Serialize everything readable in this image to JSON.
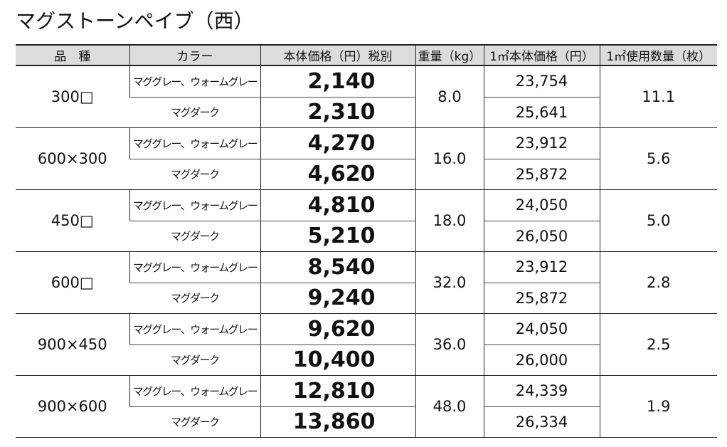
{
  "title": "マグストーンペイブ（西）",
  "table": {
    "headers": [
      "品　種",
      "カラー",
      "本体価格（円）税別",
      "重量（kg）",
      "1㎡本体価格（円）",
      "1㎡使用数量（枚）"
    ],
    "groups": [
      {
        "size": "300□",
        "weight": "8.0",
        "quantity": "11.1",
        "rows": [
          {
            "color": "マググレー、ウォームグレー",
            "price": "2,140",
            "unit_price": "23,754"
          },
          {
            "color": "マグダーク",
            "price": "2,310",
            "unit_price": "25,641"
          }
        ]
      },
      {
        "size": "600×300",
        "weight": "16.0",
        "quantity": "5.6",
        "rows": [
          {
            "color": "マググレー、ウォームグレー",
            "price": "4,270",
            "unit_price": "23,912"
          },
          {
            "color": "マグダーク",
            "price": "4,620",
            "unit_price": "25,872"
          }
        ]
      },
      {
        "size": "450□",
        "weight": "18.0",
        "quantity": "5.0",
        "rows": [
          {
            "color": "マググレー、ウォームグレー",
            "price": "4,810",
            "unit_price": "24,050"
          },
          {
            "color": "マグダーク",
            "price": "5,210",
            "unit_price": "26,050"
          }
        ]
      },
      {
        "size": "600□",
        "weight": "32.0",
        "quantity": "2.8",
        "rows": [
          {
            "color": "マググレー、ウォームグレー",
            "price": "8,540",
            "unit_price": "23,912"
          },
          {
            "color": "マグダーク",
            "price": "9,240",
            "unit_price": "25,872"
          }
        ]
      },
      {
        "size": "900×450",
        "weight": "36.0",
        "quantity": "2.5",
        "rows": [
          {
            "color": "マググレー、ウォームグレー",
            "price": "9,620",
            "unit_price": "24,050"
          },
          {
            "color": "マグダーク",
            "price": "10,400",
            "unit_price": "26,000"
          }
        ]
      },
      {
        "size": "900×600",
        "weight": "48.0",
        "quantity": "1.9",
        "rows": [
          {
            "color": "マググレー、ウォームグレー",
            "price": "12,810",
            "unit_price": "24,339"
          },
          {
            "color": "マグダーク",
            "price": "13,860",
            "unit_price": "26,334"
          }
        ]
      }
    ]
  }
}
